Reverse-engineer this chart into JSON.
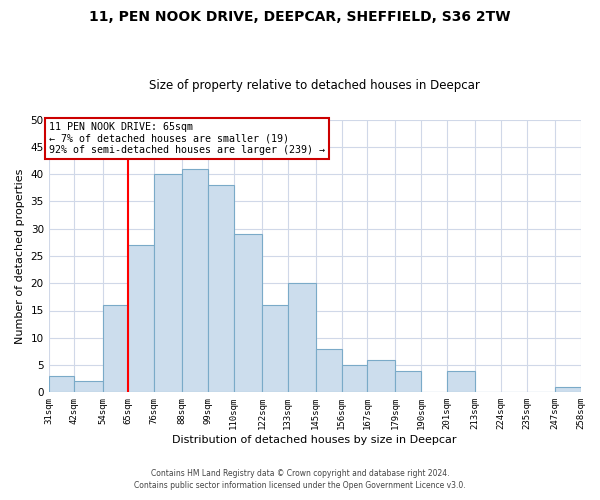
{
  "title": "11, PEN NOOK DRIVE, DEEPCAR, SHEFFIELD, S36 2TW",
  "subtitle": "Size of property relative to detached houses in Deepcar",
  "xlabel": "Distribution of detached houses by size in Deepcar",
  "ylabel": "Number of detached properties",
  "bin_edges": [
    31,
    42,
    54,
    65,
    76,
    88,
    99,
    110,
    122,
    133,
    145,
    156,
    167,
    179,
    190,
    201,
    213,
    224,
    235,
    247,
    258
  ],
  "bar_heights": [
    3,
    2,
    16,
    27,
    40,
    41,
    38,
    29,
    16,
    20,
    8,
    5,
    6,
    4,
    0,
    4,
    0,
    0,
    0,
    1
  ],
  "bar_color": "#ccdded",
  "bar_edgecolor": "#7aaac8",
  "property_line_x": 65,
  "property_line_color": "red",
  "ylim": [
    0,
    50
  ],
  "annotation_title": "11 PEN NOOK DRIVE: 65sqm",
  "annotation_line1": "← 7% of detached houses are smaller (19)",
  "annotation_line2": "92% of semi-detached houses are larger (239) →",
  "annotation_box_color": "white",
  "annotation_box_edgecolor": "#cc0000",
  "footer1": "Contains HM Land Registry data © Crown copyright and database right 2024.",
  "footer2": "Contains public sector information licensed under the Open Government Licence v3.0.",
  "tick_labels": [
    "31sqm",
    "42sqm",
    "54sqm",
    "65sqm",
    "76sqm",
    "88sqm",
    "99sqm",
    "110sqm",
    "122sqm",
    "133sqm",
    "145sqm",
    "156sqm",
    "167sqm",
    "179sqm",
    "190sqm",
    "201sqm",
    "213sqm",
    "224sqm",
    "235sqm",
    "247sqm",
    "258sqm"
  ],
  "yticks": [
    0,
    5,
    10,
    15,
    20,
    25,
    30,
    35,
    40,
    45,
    50
  ],
  "background_color": "#ffffff",
  "grid_color": "#d0d8e8"
}
